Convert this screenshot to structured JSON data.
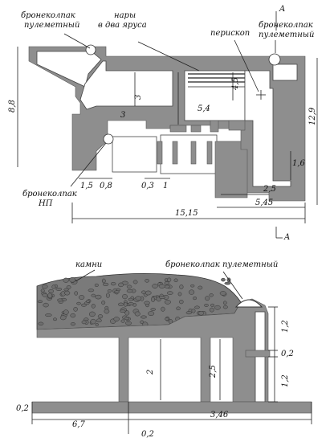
{
  "plan": {
    "labels": {
      "mg_cap_left_1": "бронеколпак",
      "mg_cap_left_2": "пулеметный",
      "bunks_1": "нары",
      "bunks_2": "в два яруса",
      "periscope": "перископ",
      "mg_cap_right_1": "бронеколпак",
      "mg_cap_right_2": "пулеметный",
      "np_cap_1": "бронеколпак",
      "np_cap_2": "НП",
      "section_mark_top": "A",
      "section_mark_bottom": "A"
    },
    "dims": {
      "height_total": "8,8",
      "right_height": "12,9",
      "inner_3a": "3",
      "inner_3b": "3",
      "d_4_5": "4,5",
      "d_5_4": "5,4",
      "d_1_5": "1,5",
      "d_0_8": "0,8",
      "d_0_3": "0,3",
      "d_1": "1",
      "d_1_6": "1,6",
      "d_2_5": "2,5",
      "d_5_45": "5,45",
      "d_15_15": "15,15"
    }
  },
  "section": {
    "labels": {
      "stones": "камни",
      "mg_cap": "бронеколпак пулеметный"
    },
    "dims": {
      "d_1_2_top": "1,2",
      "d_0_2_right": "0,2",
      "d_1_2_bottom": "1,2",
      "d_2": "2",
      "d_2_5": "2,5",
      "d_0_2_left": "0,2",
      "d_6_7": "6,7",
      "d_0_2_bottom": "0,2",
      "d_3_46": "3,46"
    }
  }
}
